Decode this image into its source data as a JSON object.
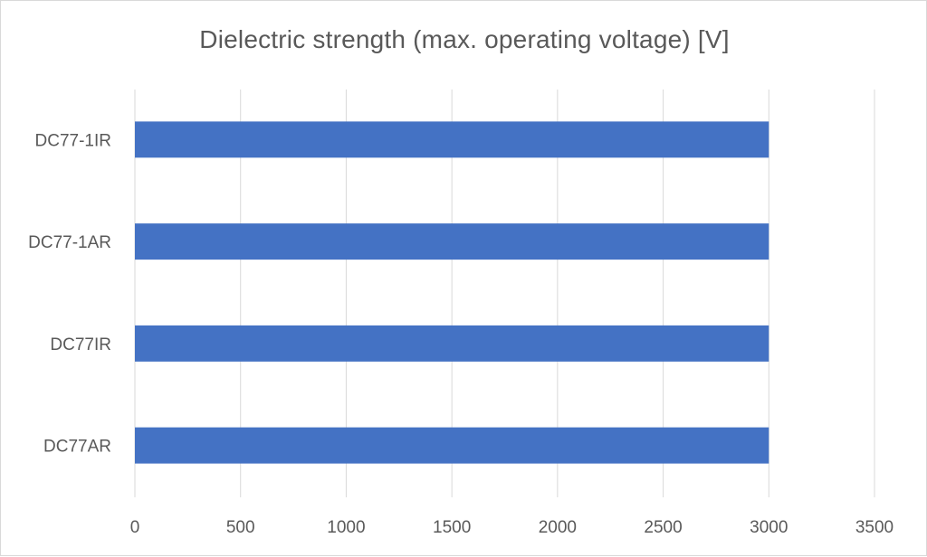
{
  "chart_data": {
    "type": "bar",
    "orientation": "horizontal",
    "title": "Dielectric strength (max. operating voltage) [V]",
    "xlabel": "",
    "ylabel": "",
    "categories": [
      "DC77-1IR",
      "DC77-1AR",
      "DC77IR",
      "DC77AR"
    ],
    "values": [
      3000,
      3000,
      3000,
      3000
    ],
    "xlim": [
      0,
      3500
    ],
    "xticks": [
      "0",
      "500",
      "1000",
      "1500",
      "2000",
      "2500",
      "3000",
      "3500"
    ],
    "grid": "vertical",
    "legend": "none",
    "bar_color": "#4472c4",
    "grid_color": "#d9d9d9"
  }
}
